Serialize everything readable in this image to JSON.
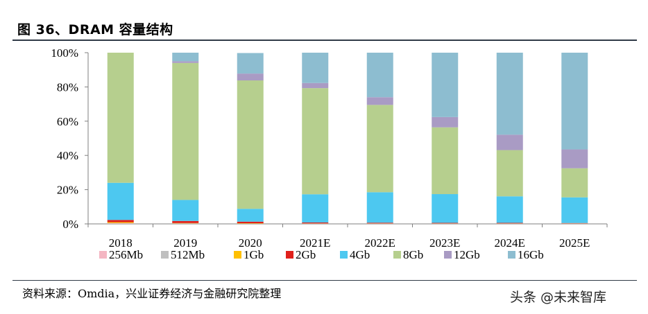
{
  "header": {
    "title": "图 36、DRAM 容量结构"
  },
  "footer": {
    "source": "资料来源：Omdia，兴业证券经济与金融研究院整理",
    "watermark": "头条 @未来智库"
  },
  "chart_data": {
    "type": "bar",
    "stacked": true,
    "title": "",
    "xlabel": "",
    "ylabel": "",
    "ylim": [
      0,
      100
    ],
    "y_ticks": [
      "0%",
      "20%",
      "40%",
      "60%",
      "80%",
      "100%"
    ],
    "legend_position": "bottom",
    "grid": false,
    "categories": [
      "2018",
      "2019",
      "2020",
      "2021E",
      "2022E",
      "2023E",
      "2024E",
      "2025E"
    ],
    "series": [
      {
        "name": "256Mb",
        "color": "#f4b6c2",
        "values": [
          0.2,
          0.1,
          0.1,
          0.1,
          0.1,
          0.1,
          0.1,
          0.1
        ]
      },
      {
        "name": "512Mb",
        "color": "#bfbfbf",
        "values": [
          0.3,
          0.2,
          0.1,
          0.1,
          0.1,
          0.1,
          0.1,
          0.1
        ]
      },
      {
        "name": "1Gb",
        "color": "#ffc000",
        "values": [
          0.5,
          0.2,
          0.2,
          0.1,
          0.1,
          0.1,
          0.1,
          0.1
        ]
      },
      {
        "name": "2Gb",
        "color": "#e0201b",
        "values": [
          1.3,
          1.2,
          0.9,
          0.5,
          0.4,
          0.3,
          0.3,
          0.2
        ]
      },
      {
        "name": "4Gb",
        "color": "#4dc8f0",
        "values": [
          21.7,
          12.3,
          7.5,
          16.5,
          17.8,
          16.8,
          15.5,
          15.0
        ]
      },
      {
        "name": "8Gb",
        "color": "#b6cf8e",
        "values": [
          76.0,
          80.0,
          75.0,
          62.0,
          51.0,
          39.0,
          27.0,
          17.0
        ]
      },
      {
        "name": "12Gb",
        "color": "#a99bc4",
        "values": [
          0.0,
          1.0,
          4.0,
          3.0,
          4.5,
          6.0,
          9.0,
          11.0
        ]
      },
      {
        "name": "16Gb",
        "color": "#8dbdd0",
        "values": [
          0.0,
          5.0,
          12.0,
          17.7,
          26.0,
          37.6,
          47.9,
          56.5
        ]
      }
    ]
  }
}
